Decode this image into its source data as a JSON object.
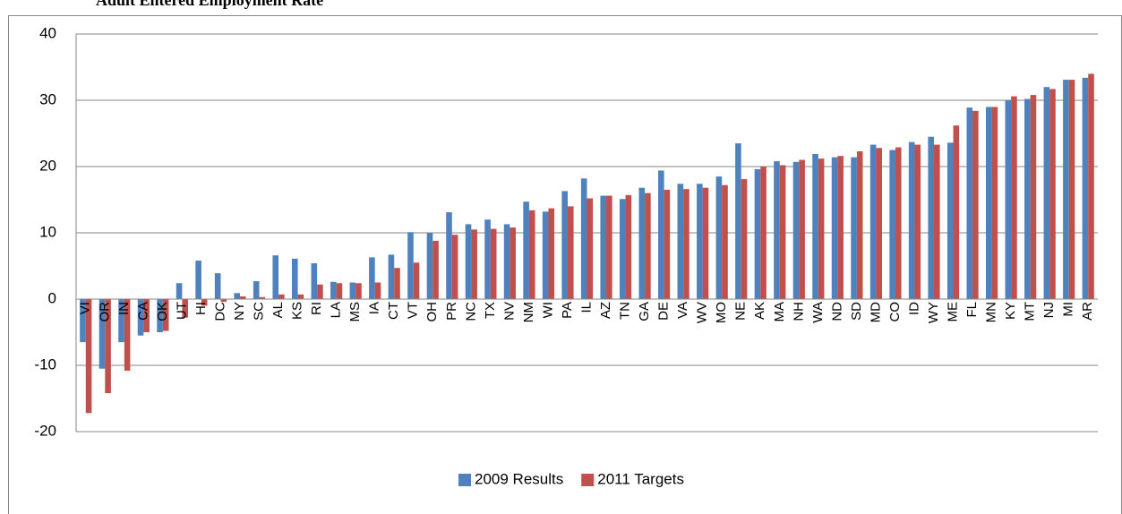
{
  "chart_data": {
    "type": "bar",
    "title": "Adult Entered Employment Rate",
    "categories": [
      "VI",
      "OR",
      "IN",
      "CA",
      "OK",
      "UT",
      "HI",
      "DC",
      "NY",
      "SC",
      "AL",
      "KS",
      "RI",
      "LA",
      "MS",
      "IA",
      "CT",
      "VT",
      "OH",
      "PR",
      "NC",
      "TX",
      "NV",
      "NM",
      "WI",
      "PA",
      "IL",
      "AZ",
      "TN",
      "GA",
      "DE",
      "VA",
      "WV",
      "MO",
      "NE",
      "AK",
      "MA",
      "NH",
      "WA",
      "ND",
      "SD",
      "MD",
      "CO",
      "ID",
      "WY",
      "ME",
      "FL",
      "MN",
      "KY",
      "MT",
      "NJ",
      "MI",
      "AR"
    ],
    "series": [
      {
        "name": "2009 Results",
        "color": "#4f81bd",
        "values": [
          -6.5,
          -10.5,
          -6.5,
          -5.5,
          -5.0,
          2.4,
          5.8,
          3.9,
          0.9,
          2.7,
          6.6,
          6.1,
          5.4,
          2.6,
          2.5,
          6.3,
          6.7,
          10.1,
          10.0,
          13.1,
          11.3,
          12.0,
          11.3,
          14.7,
          13.2,
          16.3,
          18.2,
          15.6,
          15.1,
          16.8,
          19.4,
          17.4,
          17.4,
          18.5,
          23.5,
          19.6,
          20.8,
          20.7,
          21.9,
          21.4,
          21.4,
          23.3,
          22.5,
          23.7,
          24.5,
          23.6,
          28.9,
          29.0,
          30.0,
          30.2,
          32.0,
          33.1,
          33.4
        ]
      },
      {
        "name": "2011 Targets",
        "color": "#c0504d",
        "values": [
          -17.2,
          -14.2,
          -10.8,
          -5.0,
          -4.8,
          -2.8,
          -1.0,
          -0.4,
          0.4,
          0.3,
          0.7,
          0.7,
          2.2,
          2.4,
          2.4,
          2.5,
          4.7,
          5.5,
          8.8,
          9.7,
          10.5,
          10.6,
          10.8,
          13.4,
          13.7,
          14.0,
          15.2,
          15.6,
          15.7,
          16.0,
          16.5,
          16.6,
          16.8,
          17.2,
          18.1,
          20.0,
          20.2,
          21.0,
          21.2,
          21.6,
          22.3,
          22.8,
          22.9,
          23.3,
          23.3,
          26.2,
          28.4,
          29.0,
          30.6,
          30.8,
          31.7,
          33.1,
          34.0
        ]
      }
    ],
    "ylim": [
      -20,
      40
    ],
    "yticks": [
      -20,
      -10,
      0,
      10,
      20,
      30,
      40
    ],
    "grid": true,
    "legend": "bottom"
  }
}
